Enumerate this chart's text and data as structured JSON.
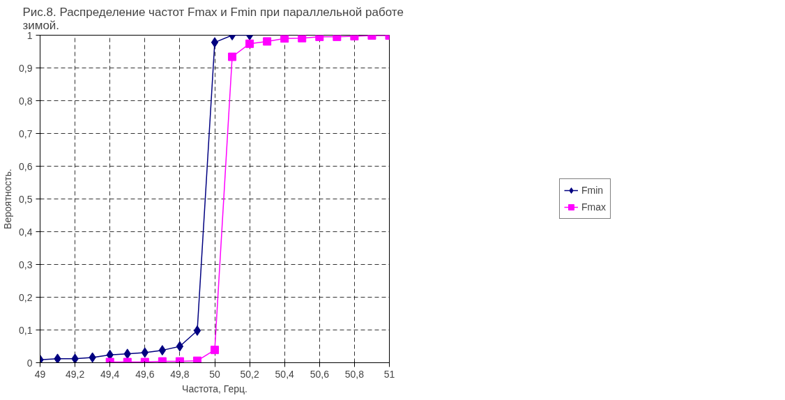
{
  "chart_data": {
    "type": "line",
    "title": "Рис.8. Распределение частот Fmax и  Fmin при параллельной работе зимой.",
    "xlabel": "Частота, Герц.",
    "ylabel": "Вероятность.",
    "xlim": [
      49,
      51
    ],
    "xticks": [
      {
        "value": 49,
        "label": "49"
      },
      {
        "value": 49.2,
        "label": "49,2"
      },
      {
        "value": 49.4,
        "label": "49,4"
      },
      {
        "value": 49.6,
        "label": "49,6"
      },
      {
        "value": 49.8,
        "label": "49,8"
      },
      {
        "value": 50,
        "label": "50"
      },
      {
        "value": 50.2,
        "label": "50,2"
      },
      {
        "value": 50.4,
        "label": "50,4"
      },
      {
        "value": 50.6,
        "label": "50,6"
      },
      {
        "value": 50.8,
        "label": "50,8"
      },
      {
        "value": 51,
        "label": "51"
      }
    ],
    "ylim": [
      0,
      1
    ],
    "yticks": [
      0,
      {
        "value": 0.1,
        "label": "0,1"
      },
      {
        "value": 0.2,
        "label": "0,2"
      },
      {
        "value": 0.3,
        "label": "0,3"
      },
      {
        "value": 0.4,
        "label": "0,4"
      },
      {
        "value": 0.5,
        "label": "0,5"
      },
      {
        "value": 0.6,
        "label": "0,6"
      },
      {
        "value": 0.7,
        "label": "0,7"
      },
      {
        "value": 0.8,
        "label": "0,8"
      },
      {
        "value": 0.9,
        "label": "0,9"
      },
      1
    ],
    "grid": true,
    "legend": "right",
    "line_style": "solid",
    "series": [
      {
        "name": "Fmin",
        "color": "#000080",
        "marker": "diamond",
        "x": [
          49,
          49.1,
          49.2,
          49.3,
          49.4,
          49.5,
          49.6,
          49.7,
          49.8,
          49.9,
          50,
          50.1,
          50.2
        ],
        "values": [
          0.009,
          0.012,
          0.012,
          0.016,
          0.024,
          0.027,
          0.031,
          0.038,
          0.05,
          0.098,
          0.978,
          1,
          1
        ]
      },
      {
        "name": "Fmax",
        "color": "#ff00ff",
        "marker": "square",
        "x": [
          49.4,
          49.5,
          49.6,
          49.7,
          49.8,
          49.9,
          50,
          50.1,
          50.2,
          50.3,
          50.4,
          50.5,
          50.6,
          50.7,
          50.8,
          50.9,
          51
        ],
        "values": [
          0.002,
          0.002,
          0.002,
          0.004,
          0.004,
          0.006,
          0.039,
          0.934,
          0.974,
          0.981,
          0.99,
          0.991,
          0.995,
          0.995,
          0.997,
          0.999,
          0.999
        ]
      }
    ]
  }
}
